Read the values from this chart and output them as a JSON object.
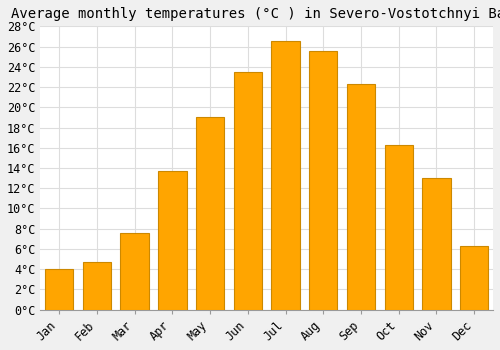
{
  "title": "Average monthly temperatures (°C ) in Severo-Vostotchnyi Bank",
  "months": [
    "Jan",
    "Feb",
    "Mar",
    "Apr",
    "May",
    "Jun",
    "Jul",
    "Aug",
    "Sep",
    "Oct",
    "Nov",
    "Dec"
  ],
  "values": [
    4.0,
    4.7,
    7.6,
    13.7,
    19.0,
    23.5,
    26.5,
    25.6,
    22.3,
    16.3,
    13.0,
    6.3
  ],
  "bar_color": "#FFA500",
  "bar_edge_color": "#CC8800",
  "background_color": "#f0f0f0",
  "plot_bg_color": "#ffffff",
  "grid_color": "#dddddd",
  "ylim": [
    0,
    28
  ],
  "yticks": [
    0,
    2,
    4,
    6,
    8,
    10,
    12,
    14,
    16,
    18,
    20,
    22,
    24,
    26,
    28
  ],
  "title_fontsize": 10,
  "tick_fontsize": 8.5,
  "font_family": "monospace"
}
